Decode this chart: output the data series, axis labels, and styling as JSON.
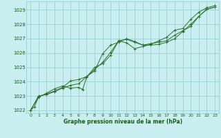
{
  "title": "Graphe pression niveau de la mer (hPa)",
  "background_color": "#c8eef0",
  "grid_color": "#92c8cc",
  "line_color": "#2d6e2d",
  "xlim": [
    -0.5,
    23.5
  ],
  "ylim": [
    1021.8,
    1029.6
  ],
  "xtick_labels": [
    "0",
    "1",
    "2",
    "3",
    "4",
    "5",
    "6",
    "7",
    "8",
    "9",
    "10",
    "11",
    "12",
    "13",
    "14",
    "15",
    "16",
    "17",
    "18",
    "19",
    "20",
    "21",
    "22",
    "23"
  ],
  "xtick_pos": [
    0,
    1,
    2,
    3,
    4,
    5,
    6,
    7,
    8,
    9,
    10,
    11,
    12,
    13,
    14,
    15,
    16,
    17,
    18,
    19,
    20,
    21,
    22,
    23
  ],
  "yticks": [
    1022,
    1023,
    1024,
    1025,
    1026,
    1027,
    1028,
    1029
  ],
  "series1_x": [
    0,
    1,
    2,
    3,
    4,
    5,
    6,
    7,
    8,
    9,
    10,
    11,
    12,
    13,
    14,
    15,
    16,
    17,
    18,
    19,
    20,
    21,
    22,
    23
  ],
  "series1_y": [
    1022.0,
    1023.0,
    1023.1,
    1023.3,
    1023.55,
    1023.75,
    1023.85,
    1024.35,
    1024.75,
    1025.95,
    1026.55,
    1026.75,
    1027.0,
    1026.8,
    1026.55,
    1026.55,
    1026.6,
    1026.75,
    1027.0,
    1027.5,
    1028.0,
    1028.55,
    1029.05,
    1029.2
  ],
  "series2_x": [
    0,
    1,
    2,
    3,
    4,
    5,
    6,
    6.5,
    7,
    8,
    9,
    10,
    11,
    12,
    13,
    14,
    15,
    16,
    17,
    18,
    19,
    20,
    21,
    22,
    23
  ],
  "series2_y": [
    1022.0,
    1022.9,
    1023.2,
    1023.5,
    1023.7,
    1023.55,
    1023.6,
    1023.45,
    1024.3,
    1025.0,
    1025.25,
    1025.85,
    1026.85,
    1026.7,
    1026.3,
    1026.45,
    1026.6,
    1026.85,
    1027.1,
    1027.6,
    1027.7,
    1028.35,
    1028.85,
    1029.15,
    1029.3
  ],
  "series3_x": [
    0,
    0.5,
    1,
    2,
    3,
    4,
    5,
    6,
    7,
    8,
    9,
    10,
    11,
    12,
    13,
    14,
    15,
    16,
    17,
    18,
    19,
    20,
    21,
    22,
    23
  ],
  "series3_y": [
    1022.0,
    1022.25,
    1022.95,
    1023.15,
    1023.35,
    1023.6,
    1024.05,
    1024.15,
    1024.35,
    1024.85,
    1025.35,
    1026.05,
    1026.85,
    1026.95,
    1026.75,
    1026.55,
    1026.65,
    1026.75,
    1026.85,
    1027.25,
    1027.55,
    1027.85,
    1028.55,
    1029.05,
    1029.2
  ]
}
